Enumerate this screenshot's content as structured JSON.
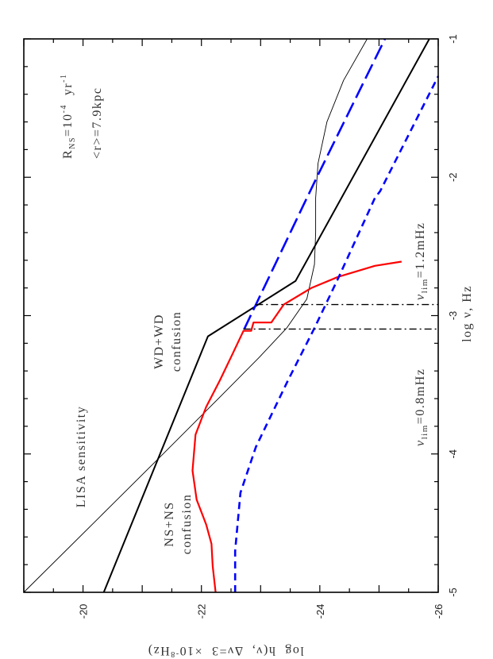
{
  "chart_data": {
    "type": "line",
    "orientation": "rotated 90 degrees (x-axis vertical on the right, y-axis along the bottom)",
    "xlabel": "log ν,  Hz",
    "ylabel": "log  h(ν,  Δν=3  ×10⁻⁸Hz)",
    "ylabel_parts": {
      "main": "log  h(ν,  Δν=3  ×10",
      "exp": "-8",
      "tail": "Hz)"
    },
    "xlim": [
      -5,
      -1
    ],
    "ylim": [
      -19,
      -26
    ],
    "x_ticks": [
      -5,
      -4,
      -3,
      -2,
      -1
    ],
    "x_tick_labels": [
      "-5",
      "-4",
      "-3",
      "-2",
      "-1"
    ],
    "y_ticks": [
      -20,
      -22,
      -24,
      -26
    ],
    "y_tick_labels": [
      "-20",
      "-22",
      "-24",
      "-26"
    ],
    "grid": false,
    "series": [
      {
        "key": "lisa",
        "style": "thin-solid",
        "color": "#000000",
        "x": [
          -5,
          -4.04,
          -3.59,
          -3.3,
          -3.09,
          -2.88,
          -2.63,
          -2.4,
          -2.15,
          -1.9,
          -1.6,
          -1.3,
          -1.0
        ],
        "y": [
          -19.0,
          -21.26,
          -22.31,
          -22.98,
          -23.44,
          -23.78,
          -23.91,
          -23.93,
          -23.93,
          -23.97,
          -24.12,
          -24.4,
          -24.8
        ]
      },
      {
        "key": "wdwd",
        "style": "thick-solid",
        "color": "#000000",
        "x": [
          -5,
          -3.15,
          -2.75,
          -1.0
        ],
        "y": [
          -20.35,
          -22.11,
          -23.59,
          -25.85
        ]
      },
      {
        "key": "nsns",
        "style": "solid",
        "color": "#ff0000",
        "x": [
          -5,
          -4.81,
          -4.65,
          -4.51,
          -4.33,
          -4.12,
          -3.86,
          -3.66,
          -3.47,
          -3.3,
          -3.11,
          -3.11,
          -3.05,
          -3.05,
          -2.92,
          -2.8,
          -2.72,
          -2.64,
          -2.61
        ],
        "y": [
          -22.24,
          -22.19,
          -22.17,
          -22.08,
          -21.92,
          -21.85,
          -21.9,
          -22.08,
          -22.31,
          -22.5,
          -22.71,
          -22.84,
          -22.88,
          -23.18,
          -23.39,
          -23.86,
          -24.31,
          -24.93,
          -25.38
        ]
      },
      {
        "key": "blue_long",
        "style": "long-dash",
        "color": "#0000ff",
        "x": [
          -3.1,
          -2.15,
          -2.0,
          -1.0
        ],
        "y": [
          -22.72,
          -23.78,
          -23.95,
          -25.1
        ]
      },
      {
        "key": "blue_short",
        "style": "short-dash",
        "color": "#0000ff",
        "x": [
          -5,
          -4.7,
          -4.28,
          -3.95,
          -3.47,
          -3.09,
          -2.73,
          -2.15,
          -2.1,
          -1.27
        ],
        "y": [
          -22.57,
          -22.57,
          -22.66,
          -22.92,
          -23.46,
          -23.91,
          -24.31,
          -24.93,
          -25.02,
          -26.0
        ]
      }
    ],
    "vertical_markers": [
      {
        "x": -3.097,
        "y_from": -22.71,
        "y_to": -26,
        "style": "dash-dot",
        "color": "#000000"
      },
      {
        "x": -2.92,
        "y_from": -22.92,
        "y_to": -26,
        "style": "dash-dot",
        "color": "#000000"
      }
    ],
    "annotations": {
      "lisa": "LISA  sensitivity",
      "wdwd_line1": "WD+WD",
      "wdwd_line2": "confusion",
      "nsns_line1": "NS+NS",
      "nsns_line2": "confusion",
      "rate": {
        "R": "R",
        "sub": "NS",
        "eq": "=10",
        "exp": "-4",
        "unit": "  yr",
        "unit_exp": "-1"
      },
      "distance": "<r>=7.9kpc",
      "nu08": {
        "nu": "ν",
        "sub": "lim",
        "val": "=0.8mHz"
      },
      "nu12": {
        "nu": "ν",
        "sub": "lim",
        "val": "=1.2mHz"
      }
    }
  }
}
